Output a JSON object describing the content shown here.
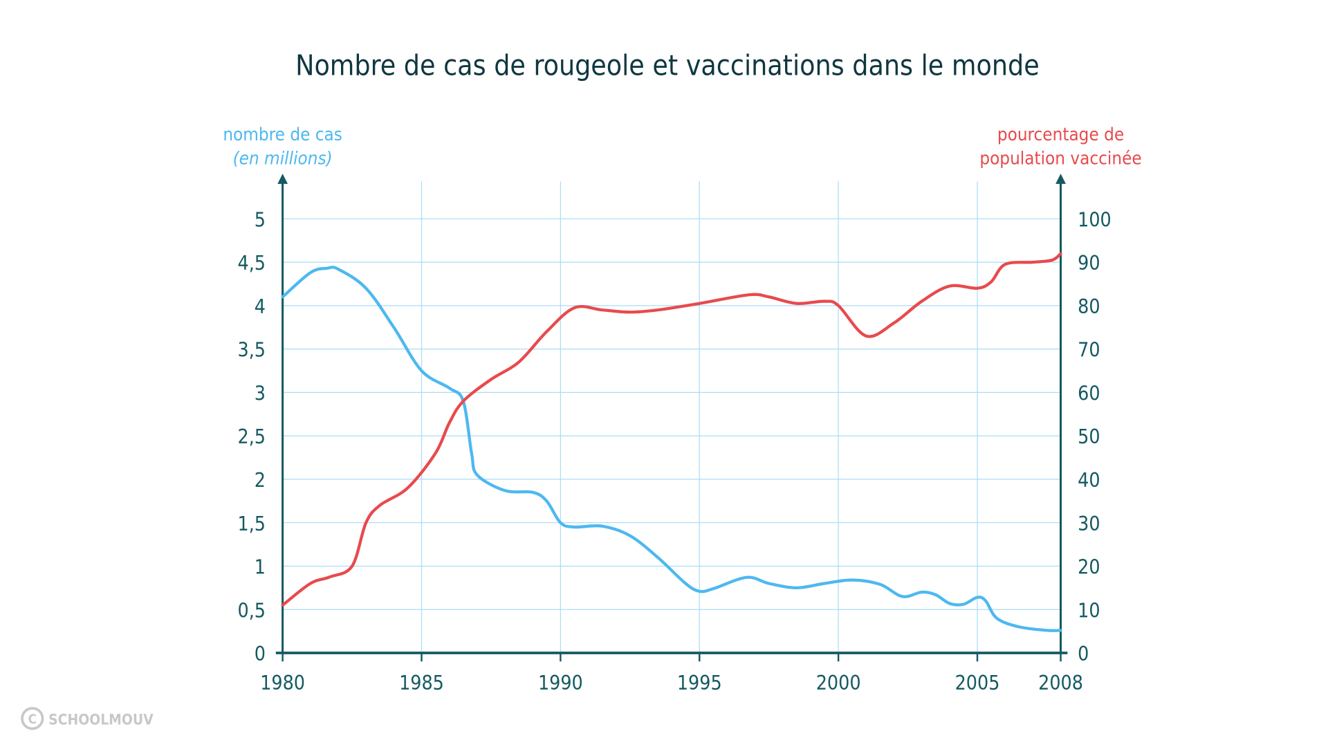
{
  "chart_data": {
    "type": "line",
    "title": "Nombre de cas de rougeole et vaccinations dans le monde",
    "xlabel": "",
    "ylabel_left": [
      "nombre de cas",
      "(en millions)"
    ],
    "ylabel_right": [
      "pourcentage de",
      "population vaccinée"
    ],
    "xlim": [
      1980,
      2008
    ],
    "ylim_left": [
      0,
      5
    ],
    "ylim_right": [
      0,
      100
    ],
    "grid": true,
    "x_ticks": [
      "1980",
      "1985",
      "1990",
      "1995",
      "2000",
      "2005",
      "2008"
    ],
    "x_tick_values": [
      1980,
      1985,
      1990,
      1995,
      2000,
      2005,
      2008
    ],
    "y_left_ticks": [
      "0",
      "0,5",
      "1",
      "1,5",
      "2",
      "2,5",
      "3",
      "3,5",
      "4",
      "4,5",
      "5"
    ],
    "y_right_ticks": [
      "0",
      "10",
      "20",
      "30",
      "40",
      "50",
      "60",
      "70",
      "80",
      "90",
      "100"
    ],
    "series": [
      {
        "name": "nombre de cas (en millions)",
        "axis": "left",
        "color": "#4db8f0",
        "x": [
          1980,
          1981,
          1981.6,
          1982,
          1983,
          1984,
          1985,
          1986,
          1986.5,
          1986.8,
          1987,
          1988,
          1989,
          1989.5,
          1990,
          1990.5,
          1991.5,
          1992.5,
          1993.5,
          1994.5,
          1995,
          1995.5,
          1996.7,
          1997.5,
          1998.5,
          1999.5,
          2000.5,
          2001.5,
          2002.3,
          2003,
          2003.5,
          2004,
          2004.5,
          2005,
          2005.3,
          2005.7,
          2006.5,
          2007.5,
          2008
        ],
        "y": [
          4.1,
          4.38,
          4.43,
          4.42,
          4.2,
          3.75,
          3.25,
          3.05,
          2.9,
          2.3,
          2.05,
          1.87,
          1.85,
          1.75,
          1.5,
          1.45,
          1.46,
          1.35,
          1.1,
          0.8,
          0.71,
          0.74,
          0.87,
          0.8,
          0.75,
          0.8,
          0.84,
          0.79,
          0.65,
          0.7,
          0.67,
          0.57,
          0.56,
          0.64,
          0.6,
          0.4,
          0.3,
          0.26,
          0.26
        ]
      },
      {
        "name": "pourcentage de population vaccinée",
        "axis": "right",
        "color": "#e84a4d",
        "x": [
          1980,
          1981,
          1981.7,
          1982.5,
          1983,
          1983.5,
          1984.5,
          1985.5,
          1986,
          1986.5,
          1987.5,
          1988.5,
          1989.5,
          1990.5,
          1991.5,
          1992.5,
          1993.5,
          1995,
          1996.8,
          1997.5,
          1998.5,
          1999.5,
          2000,
          2001,
          2002,
          2003,
          2004,
          2005,
          2005.5,
          2006,
          2007,
          2007.7,
          2008
        ],
        "y": [
          11,
          16,
          17.5,
          20,
          30,
          34,
          38,
          46,
          53,
          58,
          63,
          67,
          74,
          79.5,
          79,
          78.5,
          79,
          80.5,
          82.5,
          82,
          80.5,
          81,
          80,
          73,
          76,
          81,
          84.5,
          84,
          85.5,
          89.5,
          90,
          90.5,
          92
        ]
      }
    ],
    "watermark": "SCHOOLMOUV"
  }
}
